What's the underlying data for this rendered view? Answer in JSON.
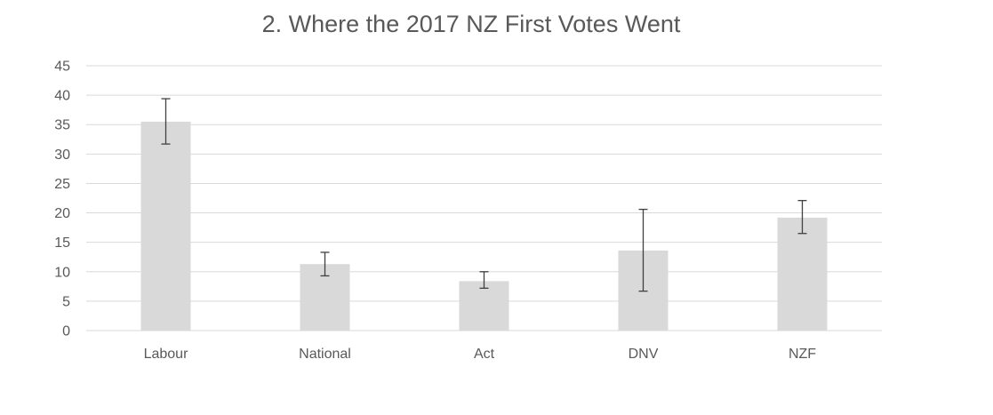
{
  "chart_data": {
    "type": "bar",
    "title": "2. Where the 2017 NZ First Votes Went",
    "xlabel": "",
    "ylabel": "",
    "categories": [
      "Labour",
      "National",
      "Act",
      "DNV",
      "NZF"
    ],
    "values": [
      35.5,
      11.3,
      8.4,
      13.6,
      19.2
    ],
    "error_low": [
      31.7,
      9.3,
      7.2,
      6.7,
      16.5
    ],
    "error_high": [
      39.4,
      13.3,
      10.0,
      20.6,
      22.1
    ],
    "ylim": [
      0,
      45
    ],
    "yticks": [
      0,
      5,
      10,
      15,
      20,
      25,
      30,
      35,
      40,
      45
    ],
    "grid": true,
    "legend": "none",
    "colors": {
      "bar": "#d9d9d9",
      "grid": "#d9d9d9",
      "error_bar": "#404040",
      "text": "#595959"
    }
  }
}
